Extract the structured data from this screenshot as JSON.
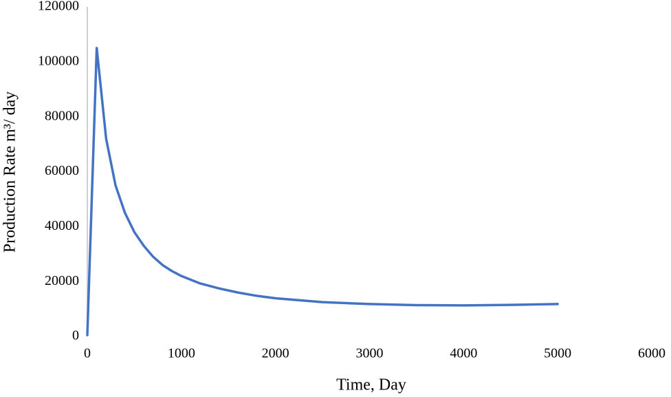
{
  "chart_data": {
    "type": "line",
    "xlabel": "Time, Day",
    "ylabel": "Production Rate m³/ day",
    "x": [
      0,
      100,
      200,
      300,
      400,
      500,
      600,
      700,
      800,
      900,
      1000,
      1200,
      1400,
      1600,
      1800,
      2000,
      2500,
      3000,
      3500,
      4000,
      4500,
      5000
    ],
    "values": [
      500,
      105000,
      72000,
      55000,
      45000,
      38000,
      33000,
      29000,
      26000,
      23800,
      22000,
      19300,
      17500,
      16000,
      14800,
      13900,
      12500,
      11800,
      11400,
      11300,
      11500,
      11800
    ],
    "color": "#4472c4",
    "xlim": [
      0,
      6000
    ],
    "xticks": [
      0,
      1000,
      2000,
      3000,
      4000,
      5000,
      6000
    ],
    "ylim": [
      0,
      120000
    ],
    "yticks": [
      0,
      20000,
      40000,
      60000,
      80000,
      100000,
      120000
    ],
    "grid": false
  }
}
